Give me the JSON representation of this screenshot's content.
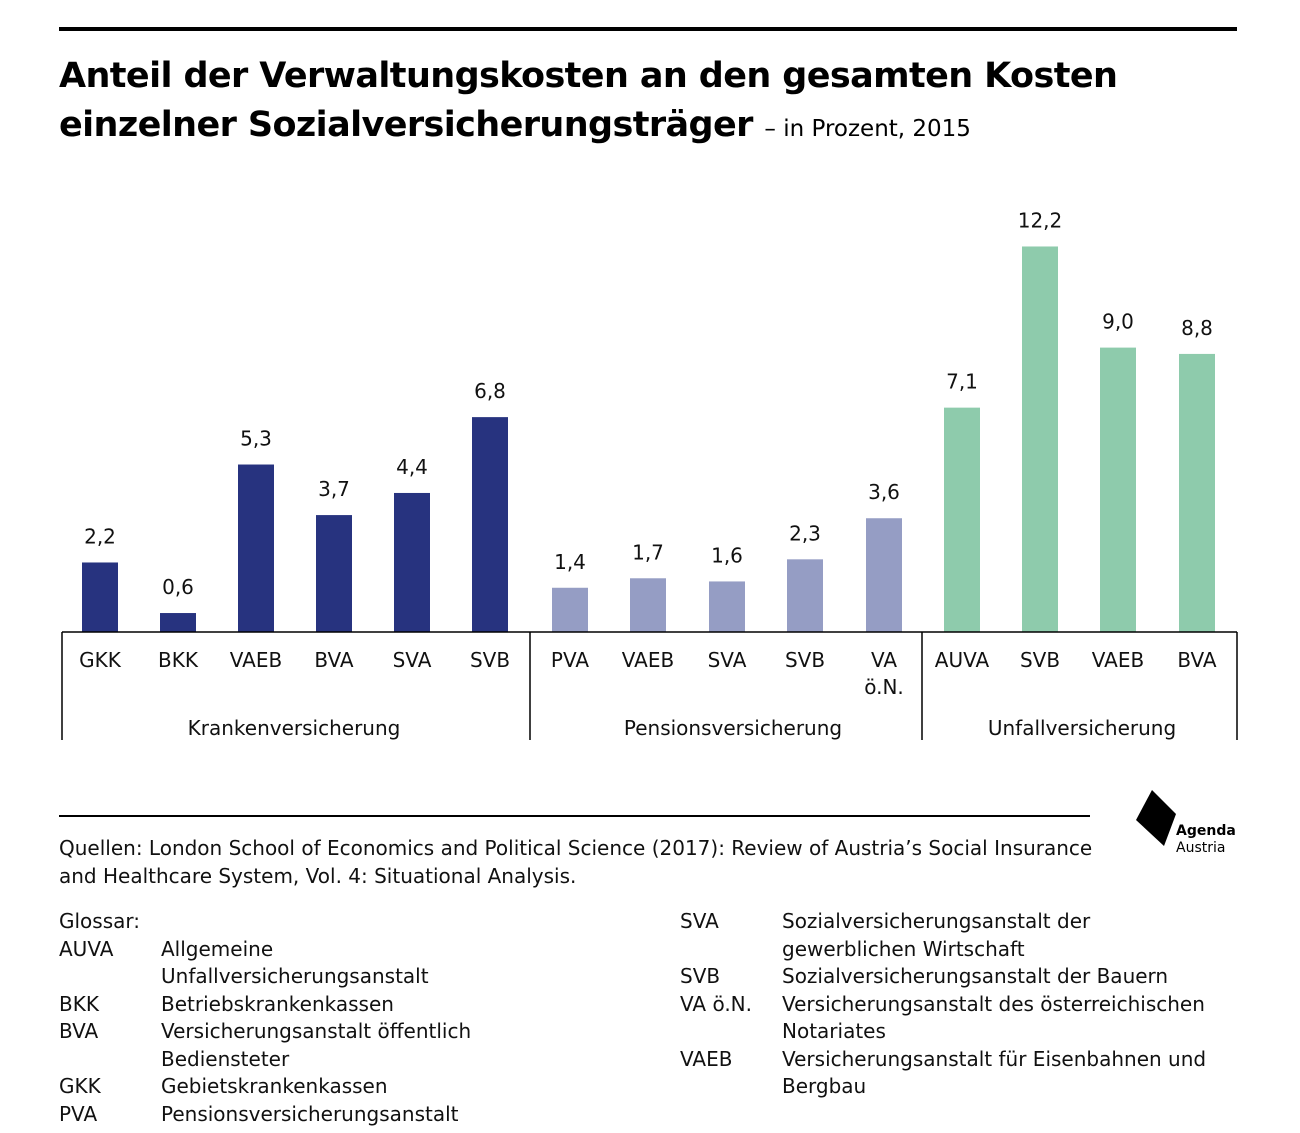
{
  "title": "Anteil der Verwaltungskosten an den gesamten Kosten einzelner Sozialversicherungsträger",
  "subtitle": "– in Prozent, 2015",
  "chart_data": {
    "type": "bar",
    "title": "Anteil der Verwaltungskosten an den gesamten Kosten einzelner Sozialversicherungsträger",
    "subtitle": "– in Prozent, 2015",
    "xlabel": "",
    "ylabel": "",
    "ylim": [
      0,
      13
    ],
    "grid": false,
    "legend": "none",
    "groups": [
      {
        "name": "Krankenversicherung",
        "color": "#27337f",
        "categories": [
          "GKK",
          "BKK",
          "VAEB",
          "BVA",
          "SVA",
          "SVB"
        ],
        "values": [
          2.2,
          0.6,
          5.3,
          3.7,
          4.4,
          6.8
        ],
        "value_labels": [
          "2,2",
          "0,6",
          "5,3",
          "3,7",
          "4,4",
          "6,8"
        ]
      },
      {
        "name": "Pensionsversicherung",
        "color": "#959dc4",
        "categories": [
          "PVA",
          "VAEB",
          "SVA",
          "SVB",
          "VA ö.N."
        ],
        "values": [
          1.4,
          1.7,
          1.6,
          2.3,
          3.6
        ],
        "value_labels": [
          "1,4",
          "1,7",
          "1,6",
          "2,3",
          "3,6"
        ]
      },
      {
        "name": "Unfallversicherung",
        "color": "#8ecbac",
        "categories": [
          "AUVA",
          "SVB",
          "VAEB",
          "BVA"
        ],
        "values": [
          7.1,
          12.2,
          9.0,
          8.8
        ],
        "value_labels": [
          "7,1",
          "12,2",
          "9,0",
          "8,8"
        ]
      }
    ]
  },
  "source": "Quellen: London School of Economics and Political Science (2017): Review of Austria’s Social Insurance and Healthcare System, Vol. 4: Situational Analysis.",
  "logo": {
    "line1": "Agenda",
    "line2": "Austria"
  },
  "glossary": {
    "heading": "Glossar:",
    "left": [
      {
        "abbr": "AUVA",
        "def": "Allgemeine Unfallversicherungsanstalt"
      },
      {
        "abbr": "BKK",
        "def": "Betriebskrankenkassen"
      },
      {
        "abbr": "BVA",
        "def": "Versicherungsanstalt öffentlich Bediensteter"
      },
      {
        "abbr": "GKK",
        "def": "Gebietskrankenkassen"
      },
      {
        "abbr": "PVA",
        "def": "Pensionsversicherungsanstalt"
      }
    ],
    "right": [
      {
        "abbr": "SVA",
        "def": "Sozialversicherungsanstalt der gewerblichen Wirtschaft"
      },
      {
        "abbr": "SVB",
        "def": "Sozialversicherungsanstalt der Bauern"
      },
      {
        "abbr": "VA ö.N.",
        "def": "Versicherungsanstalt des österreichischen Notariates"
      },
      {
        "abbr": "VAEB",
        "def": "Versicherungsanstalt für Eisenbahnen und Bergbau"
      }
    ]
  }
}
